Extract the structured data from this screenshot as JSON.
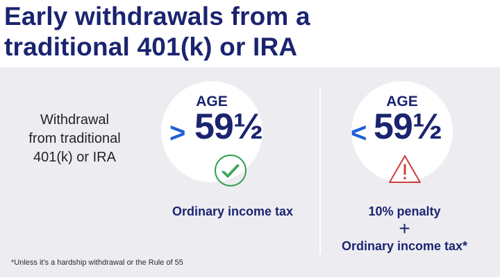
{
  "title": "Early withdrawals from a traditional 401(k) or IRA",
  "title_lines": [
    "Early withdrawals from a",
    "traditional 401(k) or IRA"
  ],
  "row_label_lines": [
    "Withdrawal",
    "from traditional",
    "401(k) or IRA"
  ],
  "over": {
    "comparator": ">",
    "age_label": "AGE",
    "age_value": "59½",
    "icon": "check-circle-icon",
    "caption": "Ordinary income tax"
  },
  "under": {
    "comparator": "<",
    "age_label": "AGE",
    "age_value": "59½",
    "icon": "warning-triangle-icon",
    "caption_line1": "10% penalty",
    "plus": "+",
    "caption_line2": "Ordinary income tax*"
  },
  "footnote": "*Unless it's a hardship withdrawal or the Rule of 55",
  "colors": {
    "navy": "#1b2470",
    "accent_blue": "#1f5fd6",
    "check_green": "#2e9e4a",
    "warning_red": "#d23a3a",
    "panel": "#ededf1"
  }
}
